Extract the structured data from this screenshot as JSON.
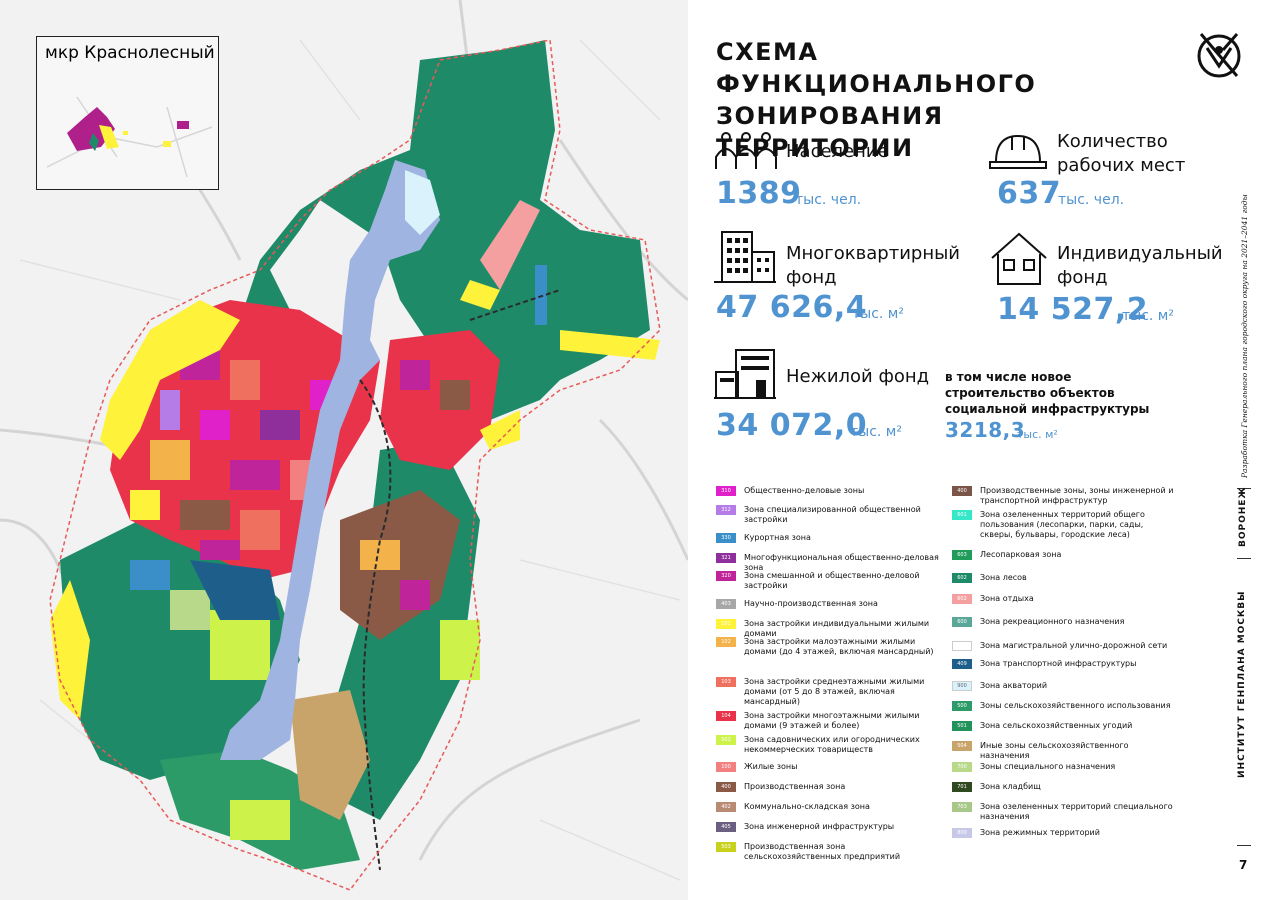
{
  "title": "СХЕМА ФУНКЦИОНАЛЬНОГО ЗОНИРОВАНИЯ ТЕРРИТОРИИ",
  "inset": {
    "title": "мкр Краснолесный"
  },
  "stats": {
    "population": {
      "label": "Население",
      "value": "1389",
      "unit": "тыс. чел.",
      "icon": "people-icon"
    },
    "jobs": {
      "label_1": "Количество",
      "label_2": "рабочих мест",
      "value": "637",
      "unit": "тыс. чел.",
      "icon": "hard-hat-icon"
    },
    "apartments": {
      "label_1": "Многоквартирный",
      "label_2": "фонд",
      "value": "47 626,4",
      "unit": "тыс. м²",
      "icon": "apartment-building-icon"
    },
    "individual": {
      "label_1": "Индивидуальный",
      "label_2": "фонд",
      "value": "14 527,2",
      "unit": "тыс. м²",
      "icon": "house-icon"
    },
    "nonresidential": {
      "label": "Нежилой фонд",
      "value": "34 072,0",
      "unit": "тыс. м²",
      "icon": "office-building-icon"
    },
    "social": {
      "line_1": "в том числе новое",
      "line_2": "строительство объектов",
      "line_3": "социальной инфраструктуры",
      "value": "3218,3",
      "unit": "тыс. м²"
    }
  },
  "side": {
    "caption": "Разработка Генерального плана городского округа на 2021–2041 годы",
    "city": "ВОРОНЕЖ",
    "institute": "ИНСТИТУТ ГЕНПЛАНА МОСКВЫ",
    "page_number": "7"
  },
  "legend_left": [
    {
      "code": "310",
      "color": "#e020c8",
      "label": "Общественно-деловые зоны"
    },
    {
      "code": "312",
      "color": "#b57be6",
      "label": "Зона специализированной общественной застройки"
    },
    {
      "code": "330",
      "color": "#3a8fc8",
      "label": "Курортная зона"
    },
    {
      "code": "321",
      "color": "#8e2f9c",
      "label": "Многофункциональная общественно-деловая зона"
    },
    {
      "code": "320",
      "color": "#c0249a",
      "label": "Зона смешанной и общественно-деловой застройки"
    },
    {
      "code": "403",
      "color": "#a7a7a7",
      "label": "Научно-производственная зона"
    },
    {
      "code": "101",
      "color": "#fff23a",
      "label": "Зона застройки индивидуальными жилыми домами"
    },
    {
      "code": "102",
      "color": "#f3b24a",
      "label": "Зона застройки малоэтажными жилыми домами (до 4 этажей, включая мансардный)"
    },
    {
      "code": "103",
      "color": "#f07060",
      "label": "Зона застройки среднеэтажными жилыми домами (от 5 до 8 этажей, включая мансардный)"
    },
    {
      "code": "104",
      "color": "#e8334a",
      "label": "Зона застройки многоэтажными жилыми домами (9 этажей и более)"
    },
    {
      "code": "502",
      "color": "#cdf24a",
      "label": "Зона садовнических или огороднических некоммерческих товариществ"
    },
    {
      "code": "100",
      "color": "#f28080",
      "label": "Жилые зоны"
    },
    {
      "code": "400",
      "color": "#8a5a46",
      "label": "Производственная зона"
    },
    {
      "code": "402",
      "color": "#b88a74",
      "label": "Коммунально-складская зона"
    },
    {
      "code": "405",
      "color": "#6a5f80",
      "label": "Зона инженерной инфраструктуры"
    },
    {
      "code": "503",
      "color": "#c8d11e",
      "label": "Производственная зона сельскохозяйственных предприятий"
    }
  ],
  "legend_right": [
    {
      "code": "400",
      "color": "#7a5548",
      "label": "Производственные зоны, зоны инженерной и транспортной инфраструктур"
    },
    {
      "code": "601",
      "color": "#34e8c8",
      "label": "Зона озелененных территорий общего пользования (лесопарки, парки, сады, скверы, бульвары, городские леса)"
    },
    {
      "code": "603",
      "color": "#1f9b5a",
      "label": "Лесопарковая зона"
    },
    {
      "code": "602",
      "color": "#1f8a68",
      "label": "Зона лесов"
    },
    {
      "code": "602",
      "color": "#f4a0a0",
      "label": "Зона отдыха"
    },
    {
      "code": "600",
      "color": "#5aa79a",
      "label": "Зона рекреационного назначения"
    },
    {
      "code": "",
      "color": "#ffffff",
      "label": "Зона магистральной улично-дорожной сети"
    },
    {
      "code": "409",
      "color": "#1d5f8a",
      "label": "Зона транспортной инфраструктуры"
    },
    {
      "code": "900",
      "color": "#d9f2fb",
      "label": "Зона акваторий"
    },
    {
      "code": "500",
      "color": "#2c9b68",
      "label": "Зоны сельскохозяйственного использования"
    },
    {
      "code": "501",
      "color": "#22935a",
      "label": "Зона сельскохозяйственных угодий"
    },
    {
      "code": "504",
      "color": "#c9a46a",
      "label": "Иные зоны сельскохозяйственного назначения"
    },
    {
      "code": "700",
      "color": "#b8d88a",
      "label": "Зоны специального назначения"
    },
    {
      "code": "701",
      "color": "#2f4a1e",
      "label": "Зона кладбищ"
    },
    {
      "code": "703",
      "color": "#a8c88a",
      "label": "Зона озелененных территорий специального назначения"
    },
    {
      "code": "800",
      "color": "#c7c7e8",
      "label": "Зона режимных территорий"
    }
  ]
}
